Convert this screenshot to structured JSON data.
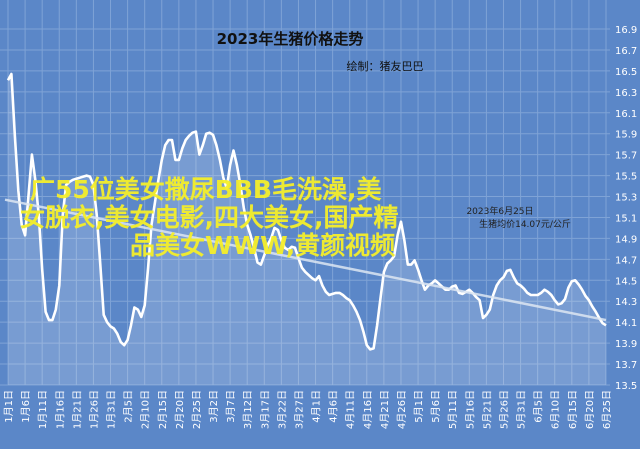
{
  "chart_data": {
    "type": "line",
    "title": "2023年生猪价格走势",
    "subtitle": "绘制：猪友巴巴",
    "annotations": [
      "2023年6月25日",
      "生猪均价14.07元/公斤"
    ],
    "overlay_text": [
      "广55位美女撒尿BBB毛洗澡,美",
      "女脱衣,美女电影,四大美女,国产精",
      "品美女WWW,黄颜视频"
    ],
    "categories": [
      "1月1日",
      null,
      null,
      null,
      null,
      "1月6日",
      null,
      null,
      null,
      null,
      "1月11日",
      null,
      null,
      null,
      null,
      "1月16日",
      null,
      null,
      null,
      null,
      "1月21日",
      null,
      null,
      null,
      null,
      "1月26日",
      null,
      null,
      null,
      null,
      "1月31日",
      null,
      null,
      null,
      null,
      "2月5日",
      null,
      null,
      null,
      null,
      "2月10日",
      null,
      null,
      null,
      null,
      "2月15日",
      null,
      null,
      null,
      null,
      "2月20日",
      null,
      null,
      null,
      null,
      "2月25日",
      null,
      null,
      null,
      null,
      "3月2日",
      null,
      null,
      null,
      null,
      "3月7日",
      null,
      null,
      null,
      null,
      "3月12日",
      null,
      null,
      null,
      null,
      "3月17日",
      null,
      null,
      null,
      null,
      "3月22日",
      null,
      null,
      null,
      null,
      "3月27日",
      null,
      null,
      null,
      null,
      "4月1日",
      null,
      null,
      null,
      null,
      "4月6日",
      null,
      null,
      null,
      null,
      "4月11日",
      null,
      null,
      null,
      null,
      "4月16日",
      null,
      null,
      null,
      null,
      "4月21日",
      null,
      null,
      null,
      null,
      "4月26日",
      null,
      null,
      null,
      null,
      "5月1日",
      null,
      null,
      null,
      null,
      "5月6日",
      null,
      null,
      null,
      null,
      "5月11日",
      null,
      null,
      null,
      null,
      "5月16日",
      null,
      null,
      null,
      null,
      "5月21日",
      null,
      null,
      null,
      null,
      "5月26日",
      null,
      null,
      null,
      null,
      "5月31日",
      null,
      null,
      null,
      null,
      "6月5日",
      null,
      null,
      null,
      null,
      "6月10日",
      null,
      null,
      null,
      null,
      "6月15日",
      null,
      null,
      null,
      null,
      "6月20日",
      null,
      null,
      null,
      null,
      "6月25日"
    ],
    "series": [
      {
        "color": "#ffffff",
        "values": [
          16.41,
          16.47,
          15.89,
          15.36,
          15.03,
          14.93,
          15.31,
          15.7,
          15.46,
          15.12,
          14.6,
          14.2,
          14.12,
          14.12,
          14.22,
          14.45,
          15.12,
          15.41,
          15.44,
          15.46,
          15.47,
          15.48,
          15.49,
          15.5,
          15.49,
          15.41,
          15.12,
          14.65,
          14.17,
          14.1,
          14.06,
          14.04,
          13.99,
          13.91,
          13.88,
          13.93,
          14.07,
          14.24,
          14.22,
          14.15,
          14.26,
          14.62,
          15.03,
          15.24,
          15.46,
          15.65,
          15.79,
          15.84,
          15.84,
          15.65,
          15.65,
          15.76,
          15.84,
          15.88,
          15.91,
          15.92,
          15.7,
          15.79,
          15.9,
          15.91,
          15.89,
          15.79,
          15.65,
          15.48,
          15.38,
          15.6,
          15.74,
          15.6,
          15.41,
          15.19,
          15.03,
          14.93,
          14.81,
          14.67,
          14.65,
          14.74,
          14.84,
          14.9,
          15.0,
          14.98,
          14.88,
          14.81,
          14.79,
          14.82,
          14.81,
          14.71,
          14.62,
          14.58,
          14.55,
          14.52,
          14.5,
          14.54,
          14.45,
          14.39,
          14.36,
          14.37,
          14.38,
          14.38,
          14.36,
          14.33,
          14.31,
          14.26,
          14.2,
          14.12,
          14.01,
          13.88,
          13.84,
          13.85,
          14.07,
          14.33,
          14.58,
          14.66,
          14.69,
          14.73,
          14.93,
          15.06,
          14.88,
          14.65,
          14.65,
          14.69,
          14.6,
          14.5,
          14.41,
          14.45,
          14.47,
          14.5,
          14.47,
          14.44,
          14.41,
          14.41,
          14.44,
          14.45,
          14.38,
          14.37,
          14.39,
          14.41,
          14.38,
          14.34,
          14.31,
          14.14,
          14.17,
          14.22,
          14.36,
          14.45,
          14.5,
          14.53,
          14.59,
          14.6,
          14.53,
          14.47,
          14.45,
          14.42,
          14.38,
          14.36,
          14.36,
          14.36,
          14.38,
          14.41,
          14.39,
          14.36,
          14.31,
          14.27,
          14.28,
          14.32,
          14.43,
          14.49,
          14.5,
          14.46,
          14.41,
          14.35,
          14.31,
          14.25,
          14.2,
          14.14,
          14.09,
          14.07
        ]
      }
    ],
    "trend": [
      15.27,
      14.12
    ],
    "trend_color": "#dde6f2",
    "ylim": [
      13.5,
      16.9
    ],
    "yticks": [
      13.5,
      13.7,
      13.9,
      14.1,
      14.3,
      14.5,
      14.7,
      14.9,
      15.1,
      15.3,
      15.5,
      15.7,
      15.9,
      16.1,
      16.3,
      16.5,
      16.7,
      16.9
    ],
    "grid": true,
    "background": "#5b87c8",
    "grid_color": "#7fa3d6",
    "overlay_color": "#f5ef2a"
  }
}
